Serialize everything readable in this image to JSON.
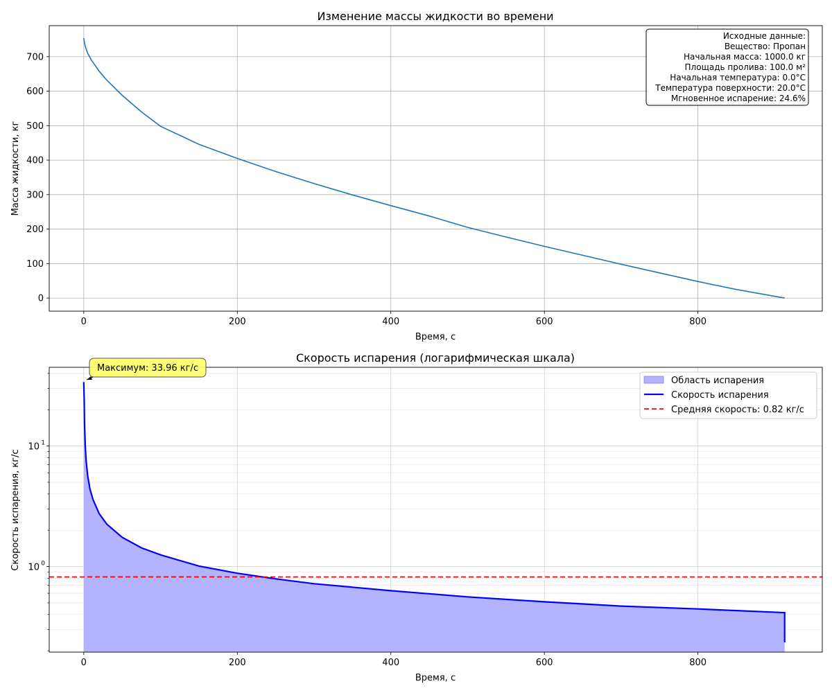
{
  "chart_data": [
    {
      "type": "line",
      "title": "Изменение массы жидкости во времени",
      "xlabel": "Время, с",
      "ylabel": "Масса жидкости, кг",
      "xlim": [
        -45,
        962
      ],
      "ylim": [
        -38,
        790
      ],
      "xticks": [
        0,
        200,
        400,
        600,
        800
      ],
      "yticks": [
        0,
        100,
        200,
        300,
        400,
        500,
        600,
        700
      ],
      "grid": true,
      "colors": {
        "line": "#1f77b4"
      },
      "series": [
        {
          "x": [
            0,
            1,
            2,
            5,
            10,
            20,
            30,
            50,
            75,
            100,
            150,
            200,
            250,
            300,
            350,
            400,
            450,
            500,
            550,
            600,
            650,
            700,
            750,
            800,
            850,
            900,
            913
          ],
          "y": [
            754,
            740,
            730,
            710,
            690,
            658,
            632,
            588,
            540,
            498,
            446,
            405,
            367,
            332,
            299,
            268,
            238,
            205,
            177,
            150,
            124,
            98,
            73,
            48,
            25,
            5,
            0
          ]
        }
      ],
      "info_box": {
        "placement": "top-right",
        "lines": [
          "Исходные данные:",
          "Вещество: Пропан",
          "Начальная масса: 1000.0 кг",
          "Площадь пролива: 100.0 м²",
          "Начальная температура: 0.0°C",
          "Температура поверхности: 20.0°C",
          "Мгновенное испарение: 24.6%"
        ]
      }
    },
    {
      "type": "area",
      "title": "Скорость испарения (логарифмическая шкала)",
      "xlabel": "Время, с",
      "ylabel": "Скорость испарения, кг/с",
      "yscale": "log",
      "xlim": [
        -45,
        962
      ],
      "ylim": [
        0.195,
        45
      ],
      "xticks": [
        0,
        200,
        400,
        600,
        800
      ],
      "yticks": [
        1,
        10
      ],
      "ytick_labels": [
        {
          "base": "10",
          "exp": "0"
        },
        {
          "base": "10",
          "exp": "1"
        }
      ],
      "grid": true,
      "colors": {
        "line": "#0000ff",
        "fill": "#b3b3ff",
        "mean": "#ff0000"
      },
      "series": [
        {
          "name": "Скорость испарения",
          "x": [
            0,
            0.5,
            1,
            2,
            3,
            5,
            8,
            12,
            20,
            30,
            50,
            75,
            100,
            150,
            200,
            250,
            300,
            400,
            500,
            600,
            700,
            800,
            913
          ],
          "y": [
            33.96,
            25,
            15.5,
            10,
            7.7,
            5.7,
            4.4,
            3.6,
            2.75,
            2.25,
            1.75,
            1.43,
            1.25,
            1.01,
            0.88,
            0.79,
            0.72,
            0.63,
            0.56,
            0.51,
            0.47,
            0.445,
            0.415
          ]
        }
      ],
      "drop": {
        "x": 913,
        "y": 0.235
      },
      "mean_rate": 0.82,
      "legend": {
        "placement": "top-right",
        "items": [
          "Область испарения",
          "Скорость испарения",
          "Средняя скорость: 0.82 кг/с"
        ]
      },
      "annotation": {
        "text": "Максимум: 33.96 кг/с",
        "x": 0,
        "y": 33.96,
        "color": "#ffff66"
      }
    }
  ]
}
